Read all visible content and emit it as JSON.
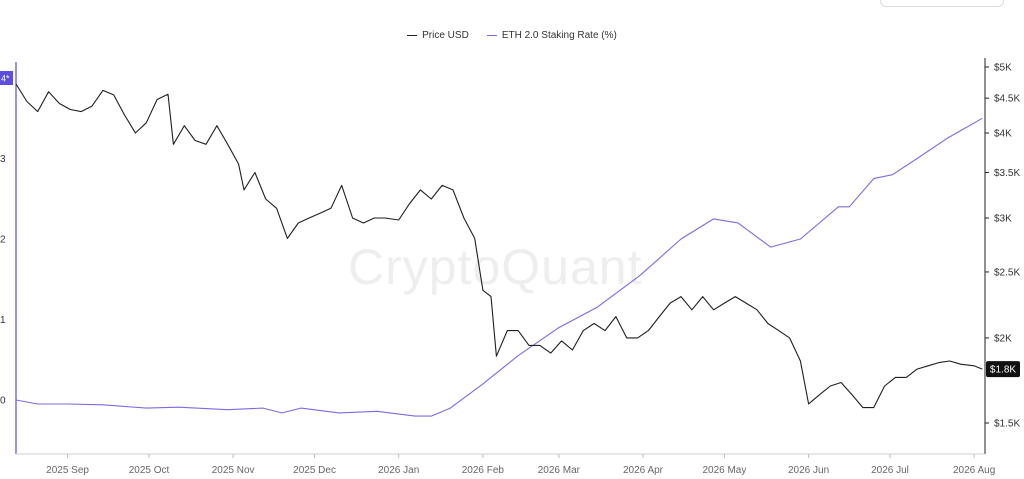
{
  "legend": {
    "price": "Price USD",
    "rate": "ETH 2.0 Staking Rate (%)"
  },
  "watermark": "CryptoQuant",
  "price_badge": "$1.8K",
  "left_marker": "4*",
  "colors": {
    "price": "#1f1f1f",
    "rate": "#7b6be0",
    "badge_bg": "#111111",
    "left_axis": "#5b4ee0"
  },
  "chart_data": {
    "type": "line",
    "x_tick_labels": [
      "2025 Sep",
      "2025 Oct",
      "2025 Nov",
      "2025 Dec",
      "2026 Jan",
      "2026 Feb",
      "2026 Mar",
      "2026 Apr",
      "2026 May",
      "2026 Jun",
      "2026 Jul",
      "2026 Aug"
    ],
    "x_ticks": [
      "2025-09-01",
      "2025-10-01",
      "2025-11-01",
      "2025-12-01",
      "2026-01-01",
      "2026-02-01",
      "2026-03-01",
      "2026-04-01",
      "2026-05-01",
      "2026-06-01",
      "2026-07-01",
      "2026-08-01"
    ],
    "xlim": [
      "2025-08-13",
      "2026-08-05"
    ],
    "y_right": {
      "label": "",
      "scale": "log",
      "ylim": [
        1500,
        5000
      ],
      "tick_values": [
        5000,
        4500,
        4000,
        3500,
        3000,
        2500,
        2000,
        1500
      ],
      "tick_labels": [
        "$5K",
        "$4.5K",
        "$4K",
        "$3.5K",
        "$3K",
        "$2.5K",
        "$2K",
        "$1.5K"
      ]
    },
    "y_left": {
      "label": "",
      "tick_labels": [
        "3",
        "2",
        "1",
        "0"
      ]
    },
    "series": [
      {
        "name": "Price USD",
        "axis": "right",
        "points": [
          [
            "2025-08-13",
            4720
          ],
          [
            "2025-08-17",
            4450
          ],
          [
            "2025-08-21",
            4300
          ],
          [
            "2025-08-25",
            4600
          ],
          [
            "2025-08-29",
            4420
          ],
          [
            "2025-09-02",
            4330
          ],
          [
            "2025-09-06",
            4300
          ],
          [
            "2025-09-10",
            4380
          ],
          [
            "2025-09-14",
            4620
          ],
          [
            "2025-09-18",
            4550
          ],
          [
            "2025-09-22",
            4250
          ],
          [
            "2025-09-26",
            4000
          ],
          [
            "2025-09-30",
            4140
          ],
          [
            "2025-10-04",
            4480
          ],
          [
            "2025-10-08",
            4560
          ],
          [
            "2025-10-10",
            3850
          ],
          [
            "2025-10-14",
            4100
          ],
          [
            "2025-10-18",
            3900
          ],
          [
            "2025-10-22",
            3850
          ],
          [
            "2025-10-26",
            4100
          ],
          [
            "2025-10-30",
            3850
          ],
          [
            "2025-11-03",
            3600
          ],
          [
            "2025-11-05",
            3300
          ],
          [
            "2025-11-09",
            3500
          ],
          [
            "2025-11-13",
            3200
          ],
          [
            "2025-11-17",
            3100
          ],
          [
            "2025-11-21",
            2800
          ],
          [
            "2025-11-25",
            2950
          ],
          [
            "2025-11-29",
            3000
          ],
          [
            "2025-12-03",
            3050
          ],
          [
            "2025-12-07",
            3100
          ],
          [
            "2025-12-11",
            3350
          ],
          [
            "2025-12-15",
            3000
          ],
          [
            "2025-12-19",
            2950
          ],
          [
            "2025-12-23",
            3000
          ],
          [
            "2025-12-27",
            3000
          ],
          [
            "2026-01-01",
            2980
          ],
          [
            "2026-01-05",
            3150
          ],
          [
            "2026-01-09",
            3300
          ],
          [
            "2026-01-13",
            3200
          ],
          [
            "2026-01-17",
            3350
          ],
          [
            "2026-01-21",
            3300
          ],
          [
            "2026-01-25",
            3000
          ],
          [
            "2026-01-29",
            2800
          ],
          [
            "2026-02-01",
            2350
          ],
          [
            "2026-02-04",
            2300
          ],
          [
            "2026-02-06",
            1880
          ],
          [
            "2026-02-10",
            2050
          ],
          [
            "2026-02-14",
            2050
          ],
          [
            "2026-02-18",
            1950
          ],
          [
            "2026-02-22",
            1950
          ],
          [
            "2026-02-26",
            1900
          ],
          [
            "2026-03-02",
            1980
          ],
          [
            "2026-03-06",
            1920
          ],
          [
            "2026-03-10",
            2050
          ],
          [
            "2026-03-14",
            2100
          ],
          [
            "2026-03-18",
            2050
          ],
          [
            "2026-03-22",
            2150
          ],
          [
            "2026-03-26",
            2000
          ],
          [
            "2026-03-30",
            2000
          ],
          [
            "2026-04-03",
            2050
          ],
          [
            "2026-04-07",
            2150
          ],
          [
            "2026-04-11",
            2250
          ],
          [
            "2026-04-15",
            2300
          ],
          [
            "2026-04-19",
            2200
          ],
          [
            "2026-04-23",
            2300
          ],
          [
            "2026-04-27",
            2200
          ],
          [
            "2026-05-01",
            2250
          ],
          [
            "2026-05-05",
            2300
          ],
          [
            "2026-05-09",
            2250
          ],
          [
            "2026-05-13",
            2200
          ],
          [
            "2026-05-17",
            2100
          ],
          [
            "2026-05-21",
            2050
          ],
          [
            "2026-05-25",
            2000
          ],
          [
            "2026-05-29",
            1850
          ],
          [
            "2026-06-01",
            1600
          ],
          [
            "2026-06-05",
            1650
          ],
          [
            "2026-06-09",
            1700
          ],
          [
            "2026-06-13",
            1720
          ],
          [
            "2026-06-17",
            1650
          ],
          [
            "2026-06-21",
            1580
          ],
          [
            "2026-06-25",
            1580
          ],
          [
            "2026-06-29",
            1700
          ],
          [
            "2026-07-03",
            1750
          ],
          [
            "2026-07-07",
            1750
          ],
          [
            "2026-07-11",
            1800
          ],
          [
            "2026-07-15",
            1820
          ],
          [
            "2026-07-19",
            1840
          ],
          [
            "2026-07-23",
            1850
          ],
          [
            "2026-07-27",
            1830
          ],
          [
            "2026-08-01",
            1820
          ],
          [
            "2026-08-04",
            1800
          ]
        ]
      },
      {
        "name": "ETH 2.0 Staking Rate (%)",
        "axis": "left",
        "points": [
          [
            "2025-08-13",
            0.0
          ],
          [
            "2025-08-21",
            -0.05
          ],
          [
            "2025-09-01",
            -0.05
          ],
          [
            "2025-09-14",
            -0.06
          ],
          [
            "2025-09-30",
            -0.1
          ],
          [
            "2025-10-12",
            -0.09
          ],
          [
            "2025-10-30",
            -0.12
          ],
          [
            "2025-11-12",
            -0.1
          ],
          [
            "2025-11-19",
            -0.16
          ],
          [
            "2025-11-26",
            -0.1
          ],
          [
            "2025-12-10",
            -0.16
          ],
          [
            "2025-12-24",
            -0.14
          ],
          [
            "2026-01-07",
            -0.2
          ],
          [
            "2026-01-13",
            -0.2
          ],
          [
            "2026-01-20",
            -0.1
          ],
          [
            "2026-02-01",
            0.2
          ],
          [
            "2026-02-14",
            0.55
          ],
          [
            "2026-03-01",
            0.9
          ],
          [
            "2026-03-15",
            1.15
          ],
          [
            "2026-03-31",
            1.55
          ],
          [
            "2026-04-15",
            2.0
          ],
          [
            "2026-04-27",
            2.25
          ],
          [
            "2026-05-06",
            2.2
          ],
          [
            "2026-05-18",
            1.9
          ],
          [
            "2026-05-29",
            2.0
          ],
          [
            "2026-06-12",
            2.4
          ],
          [
            "2026-06-16",
            2.4
          ],
          [
            "2026-06-25",
            2.75
          ],
          [
            "2026-07-02",
            2.8
          ],
          [
            "2026-07-11",
            3.0
          ],
          [
            "2026-07-22",
            3.25
          ],
          [
            "2026-08-04",
            3.5
          ]
        ]
      }
    ],
    "legend_position": "top-center",
    "grid": false
  }
}
